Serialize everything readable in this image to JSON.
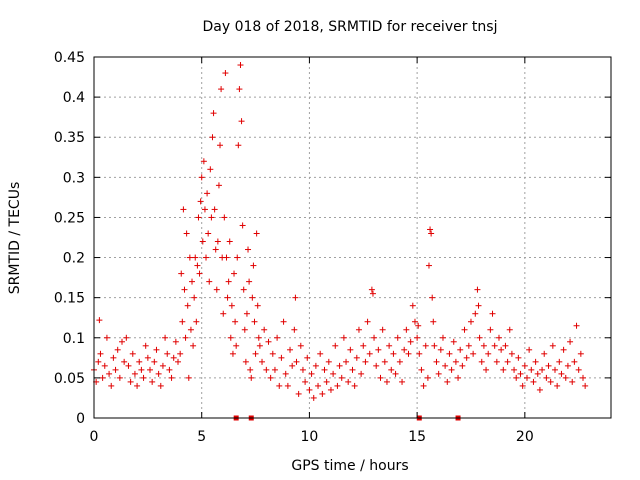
{
  "chart_data": {
    "type": "scatter",
    "title": "Day 018 of 2018, SRMTID for receiver tnsj",
    "xlabel": "GPS time / hours",
    "ylabel": "SRMTID / TECUs",
    "xlim": [
      0,
      24
    ],
    "ylim": [
      0,
      0.45
    ],
    "grid": true,
    "marker": "+",
    "color": "#e00000",
    "x_ticks": [
      0,
      5,
      10,
      15,
      20
    ],
    "x_tick_labels": [
      "0",
      "5",
      "10",
      "15",
      "20"
    ],
    "y_ticks": [
      0,
      0.05,
      0.1,
      0.15,
      0.2,
      0.25,
      0.3,
      0.35,
      0.4,
      0.45
    ],
    "y_tick_labels": [
      "0",
      "0.05",
      "0.1",
      "0.15",
      "0.2",
      "0.25",
      "0.3",
      "0.35",
      "0.4",
      "0.45"
    ],
    "zero_markers_x": [
      6.6,
      7.3,
      15.1,
      16.9
    ],
    "series": [
      {
        "name": "SRMTID",
        "points": [
          [
            0.0,
            0.06
          ],
          [
            0.1,
            0.045
          ],
          [
            0.2,
            0.07
          ],
          [
            0.25,
            0.122
          ],
          [
            0.3,
            0.08
          ],
          [
            0.4,
            0.05
          ],
          [
            0.5,
            0.065
          ],
          [
            0.6,
            0.1
          ],
          [
            0.7,
            0.055
          ],
          [
            0.8,
            0.04
          ],
          [
            0.9,
            0.075
          ],
          [
            1.0,
            0.06
          ],
          [
            1.1,
            0.085
          ],
          [
            1.2,
            0.05
          ],
          [
            1.3,
            0.095
          ],
          [
            1.4,
            0.07
          ],
          [
            1.5,
            0.1
          ],
          [
            1.6,
            0.065
          ],
          [
            1.7,
            0.045
          ],
          [
            1.8,
            0.08
          ],
          [
            1.9,
            0.055
          ],
          [
            2.0,
            0.04
          ],
          [
            2.1,
            0.07
          ],
          [
            2.2,
            0.06
          ],
          [
            2.3,
            0.05
          ],
          [
            2.4,
            0.09
          ],
          [
            2.5,
            0.075
          ],
          [
            2.6,
            0.06
          ],
          [
            2.7,
            0.045
          ],
          [
            2.8,
            0.07
          ],
          [
            2.9,
            0.085
          ],
          [
            3.0,
            0.055
          ],
          [
            3.1,
            0.04
          ],
          [
            3.2,
            0.065
          ],
          [
            3.3,
            0.1
          ],
          [
            3.4,
            0.08
          ],
          [
            3.5,
            0.06
          ],
          [
            3.6,
            0.05
          ],
          [
            3.7,
            0.075
          ],
          [
            3.8,
            0.095
          ],
          [
            3.9,
            0.07
          ],
          [
            4.0,
            0.08
          ],
          [
            4.05,
            0.18
          ],
          [
            4.1,
            0.12
          ],
          [
            4.15,
            0.26
          ],
          [
            4.2,
            0.16
          ],
          [
            4.25,
            0.1
          ],
          [
            4.3,
            0.23
          ],
          [
            4.35,
            0.14
          ],
          [
            4.4,
            0.05
          ],
          [
            4.45,
            0.2
          ],
          [
            4.5,
            0.11
          ],
          [
            4.55,
            0.17
          ],
          [
            4.6,
            0.09
          ],
          [
            4.65,
            0.15
          ],
          [
            4.7,
            0.2
          ],
          [
            4.75,
            0.12
          ],
          [
            4.8,
            0.19
          ],
          [
            4.85,
            0.25
          ],
          [
            4.9,
            0.18
          ],
          [
            4.95,
            0.27
          ],
          [
            5.0,
            0.3
          ],
          [
            5.05,
            0.22
          ],
          [
            5.1,
            0.32
          ],
          [
            5.15,
            0.26
          ],
          [
            5.2,
            0.2
          ],
          [
            5.25,
            0.28
          ],
          [
            5.3,
            0.23
          ],
          [
            5.35,
            0.17
          ],
          [
            5.4,
            0.31
          ],
          [
            5.45,
            0.25
          ],
          [
            5.5,
            0.35
          ],
          [
            5.55,
            0.38
          ],
          [
            5.6,
            0.26
          ],
          [
            5.65,
            0.21
          ],
          [
            5.7,
            0.16
          ],
          [
            5.75,
            0.22
          ],
          [
            5.8,
            0.29
          ],
          [
            5.85,
            0.34
          ],
          [
            5.9,
            0.41
          ],
          [
            5.95,
            0.2
          ],
          [
            6.0,
            0.13
          ],
          [
            6.05,
            0.25
          ],
          [
            6.1,
            0.43
          ],
          [
            6.15,
            0.2
          ],
          [
            6.2,
            0.15
          ],
          [
            6.25,
            0.17
          ],
          [
            6.3,
            0.22
          ],
          [
            6.35,
            0.1
          ],
          [
            6.4,
            0.14
          ],
          [
            6.45,
            0.08
          ],
          [
            6.5,
            0.18
          ],
          [
            6.55,
            0.12
          ],
          [
            6.6,
            0.09
          ],
          [
            6.65,
            0.2
          ],
          [
            6.7,
            0.34
          ],
          [
            6.75,
            0.41
          ],
          [
            6.8,
            0.44
          ],
          [
            6.85,
            0.37
          ],
          [
            6.9,
            0.24
          ],
          [
            6.95,
            0.16
          ],
          [
            7.0,
            0.11
          ],
          [
            7.05,
            0.07
          ],
          [
            7.1,
            0.13
          ],
          [
            7.15,
            0.21
          ],
          [
            7.2,
            0.17
          ],
          [
            7.25,
            0.06
          ],
          [
            7.3,
            0.05
          ],
          [
            7.35,
            0.15
          ],
          [
            7.4,
            0.19
          ],
          [
            7.45,
            0.12
          ],
          [
            7.5,
            0.08
          ],
          [
            7.55,
            0.23
          ],
          [
            7.6,
            0.14
          ],
          [
            7.65,
            0.1
          ],
          [
            7.7,
            0.09
          ],
          [
            7.8,
            0.07
          ],
          [
            7.9,
            0.11
          ],
          [
            8.0,
            0.06
          ],
          [
            8.1,
            0.095
          ],
          [
            8.2,
            0.05
          ],
          [
            8.3,
            0.08
          ],
          [
            8.4,
            0.06
          ],
          [
            8.5,
            0.1
          ],
          [
            8.6,
            0.04
          ],
          [
            8.7,
            0.075
          ],
          [
            8.8,
            0.12
          ],
          [
            8.9,
            0.055
          ],
          [
            9.0,
            0.04
          ],
          [
            9.1,
            0.085
          ],
          [
            9.2,
            0.065
          ],
          [
            9.3,
            0.11
          ],
          [
            9.35,
            0.15
          ],
          [
            9.4,
            0.07
          ],
          [
            9.5,
            0.03
          ],
          [
            9.6,
            0.09
          ],
          [
            9.7,
            0.06
          ],
          [
            9.8,
            0.045
          ],
          [
            9.9,
            0.075
          ],
          [
            10.0,
            0.035
          ],
          [
            10.1,
            0.055
          ],
          [
            10.2,
            0.025
          ],
          [
            10.3,
            0.065
          ],
          [
            10.4,
            0.04
          ],
          [
            10.5,
            0.08
          ],
          [
            10.6,
            0.03
          ],
          [
            10.7,
            0.06
          ],
          [
            10.8,
            0.045
          ],
          [
            10.9,
            0.07
          ],
          [
            11.0,
            0.035
          ],
          [
            11.1,
            0.055
          ],
          [
            11.2,
            0.09
          ],
          [
            11.3,
            0.04
          ],
          [
            11.4,
            0.065
          ],
          [
            11.5,
            0.05
          ],
          [
            11.6,
            0.1
          ],
          [
            11.7,
            0.07
          ],
          [
            11.8,
            0.045
          ],
          [
            11.9,
            0.085
          ],
          [
            12.0,
            0.06
          ],
          [
            12.1,
            0.04
          ],
          [
            12.2,
            0.075
          ],
          [
            12.3,
            0.11
          ],
          [
            12.4,
            0.055
          ],
          [
            12.5,
            0.09
          ],
          [
            12.6,
            0.07
          ],
          [
            12.7,
            0.12
          ],
          [
            12.8,
            0.08
          ],
          [
            12.9,
            0.16
          ],
          [
            12.95,
            0.155
          ],
          [
            13.0,
            0.1
          ],
          [
            13.1,
            0.065
          ],
          [
            13.2,
            0.085
          ],
          [
            13.3,
            0.05
          ],
          [
            13.4,
            0.11
          ],
          [
            13.5,
            0.07
          ],
          [
            13.6,
            0.045
          ],
          [
            13.7,
            0.09
          ],
          [
            13.8,
            0.06
          ],
          [
            13.9,
            0.08
          ],
          [
            14.0,
            0.055
          ],
          [
            14.1,
            0.1
          ],
          [
            14.2,
            0.07
          ],
          [
            14.3,
            0.045
          ],
          [
            14.4,
            0.085
          ],
          [
            14.5,
            0.11
          ],
          [
            14.6,
            0.08
          ],
          [
            14.7,
            0.095
          ],
          [
            14.8,
            0.14
          ],
          [
            14.9,
            0.12
          ],
          [
            15.0,
            0.1
          ],
          [
            15.05,
            0.115
          ],
          [
            15.1,
            0.08
          ],
          [
            15.2,
            0.06
          ],
          [
            15.3,
            0.04
          ],
          [
            15.4,
            0.09
          ],
          [
            15.5,
            0.05
          ],
          [
            15.55,
            0.19
          ],
          [
            15.6,
            0.235
          ],
          [
            15.65,
            0.23
          ],
          [
            15.7,
            0.15
          ],
          [
            15.75,
            0.12
          ],
          [
            15.8,
            0.09
          ],
          [
            15.9,
            0.07
          ],
          [
            16.0,
            0.055
          ],
          [
            16.1,
            0.085
          ],
          [
            16.2,
            0.1
          ],
          [
            16.3,
            0.065
          ],
          [
            16.4,
            0.045
          ],
          [
            16.5,
            0.08
          ],
          [
            16.6,
            0.06
          ],
          [
            16.7,
            0.095
          ],
          [
            16.8,
            0.07
          ],
          [
            16.9,
            0.05
          ],
          [
            17.0,
            0.085
          ],
          [
            17.1,
            0.065
          ],
          [
            17.2,
            0.11
          ],
          [
            17.3,
            0.075
          ],
          [
            17.4,
            0.09
          ],
          [
            17.5,
            0.12
          ],
          [
            17.6,
            0.08
          ],
          [
            17.7,
            0.13
          ],
          [
            17.8,
            0.16
          ],
          [
            17.85,
            0.14
          ],
          [
            17.9,
            0.1
          ],
          [
            18.0,
            0.07
          ],
          [
            18.1,
            0.09
          ],
          [
            18.2,
            0.06
          ],
          [
            18.3,
            0.08
          ],
          [
            18.4,
            0.11
          ],
          [
            18.5,
            0.13
          ],
          [
            18.6,
            0.09
          ],
          [
            18.7,
            0.07
          ],
          [
            18.8,
            0.1
          ],
          [
            18.9,
            0.085
          ],
          [
            19.0,
            0.06
          ],
          [
            19.1,
            0.09
          ],
          [
            19.2,
            0.07
          ],
          [
            19.3,
            0.11
          ],
          [
            19.4,
            0.08
          ],
          [
            19.5,
            0.06
          ],
          [
            19.6,
            0.05
          ],
          [
            19.7,
            0.075
          ],
          [
            19.8,
            0.055
          ],
          [
            19.9,
            0.04
          ],
          [
            20.0,
            0.065
          ],
          [
            20.1,
            0.05
          ],
          [
            20.2,
            0.085
          ],
          [
            20.3,
            0.06
          ],
          [
            20.4,
            0.045
          ],
          [
            20.5,
            0.07
          ],
          [
            20.6,
            0.055
          ],
          [
            20.7,
            0.035
          ],
          [
            20.8,
            0.06
          ],
          [
            20.9,
            0.08
          ],
          [
            21.0,
            0.05
          ],
          [
            21.1,
            0.065
          ],
          [
            21.2,
            0.045
          ],
          [
            21.3,
            0.09
          ],
          [
            21.4,
            0.06
          ],
          [
            21.5,
            0.04
          ],
          [
            21.6,
            0.07
          ],
          [
            21.7,
            0.055
          ],
          [
            21.8,
            0.085
          ],
          [
            21.9,
            0.05
          ],
          [
            22.0,
            0.065
          ],
          [
            22.1,
            0.095
          ],
          [
            22.2,
            0.045
          ],
          [
            22.3,
            0.07
          ],
          [
            22.4,
            0.115
          ],
          [
            22.5,
            0.06
          ],
          [
            22.6,
            0.08
          ],
          [
            22.7,
            0.05
          ],
          [
            22.8,
            0.04
          ]
        ]
      }
    ]
  }
}
